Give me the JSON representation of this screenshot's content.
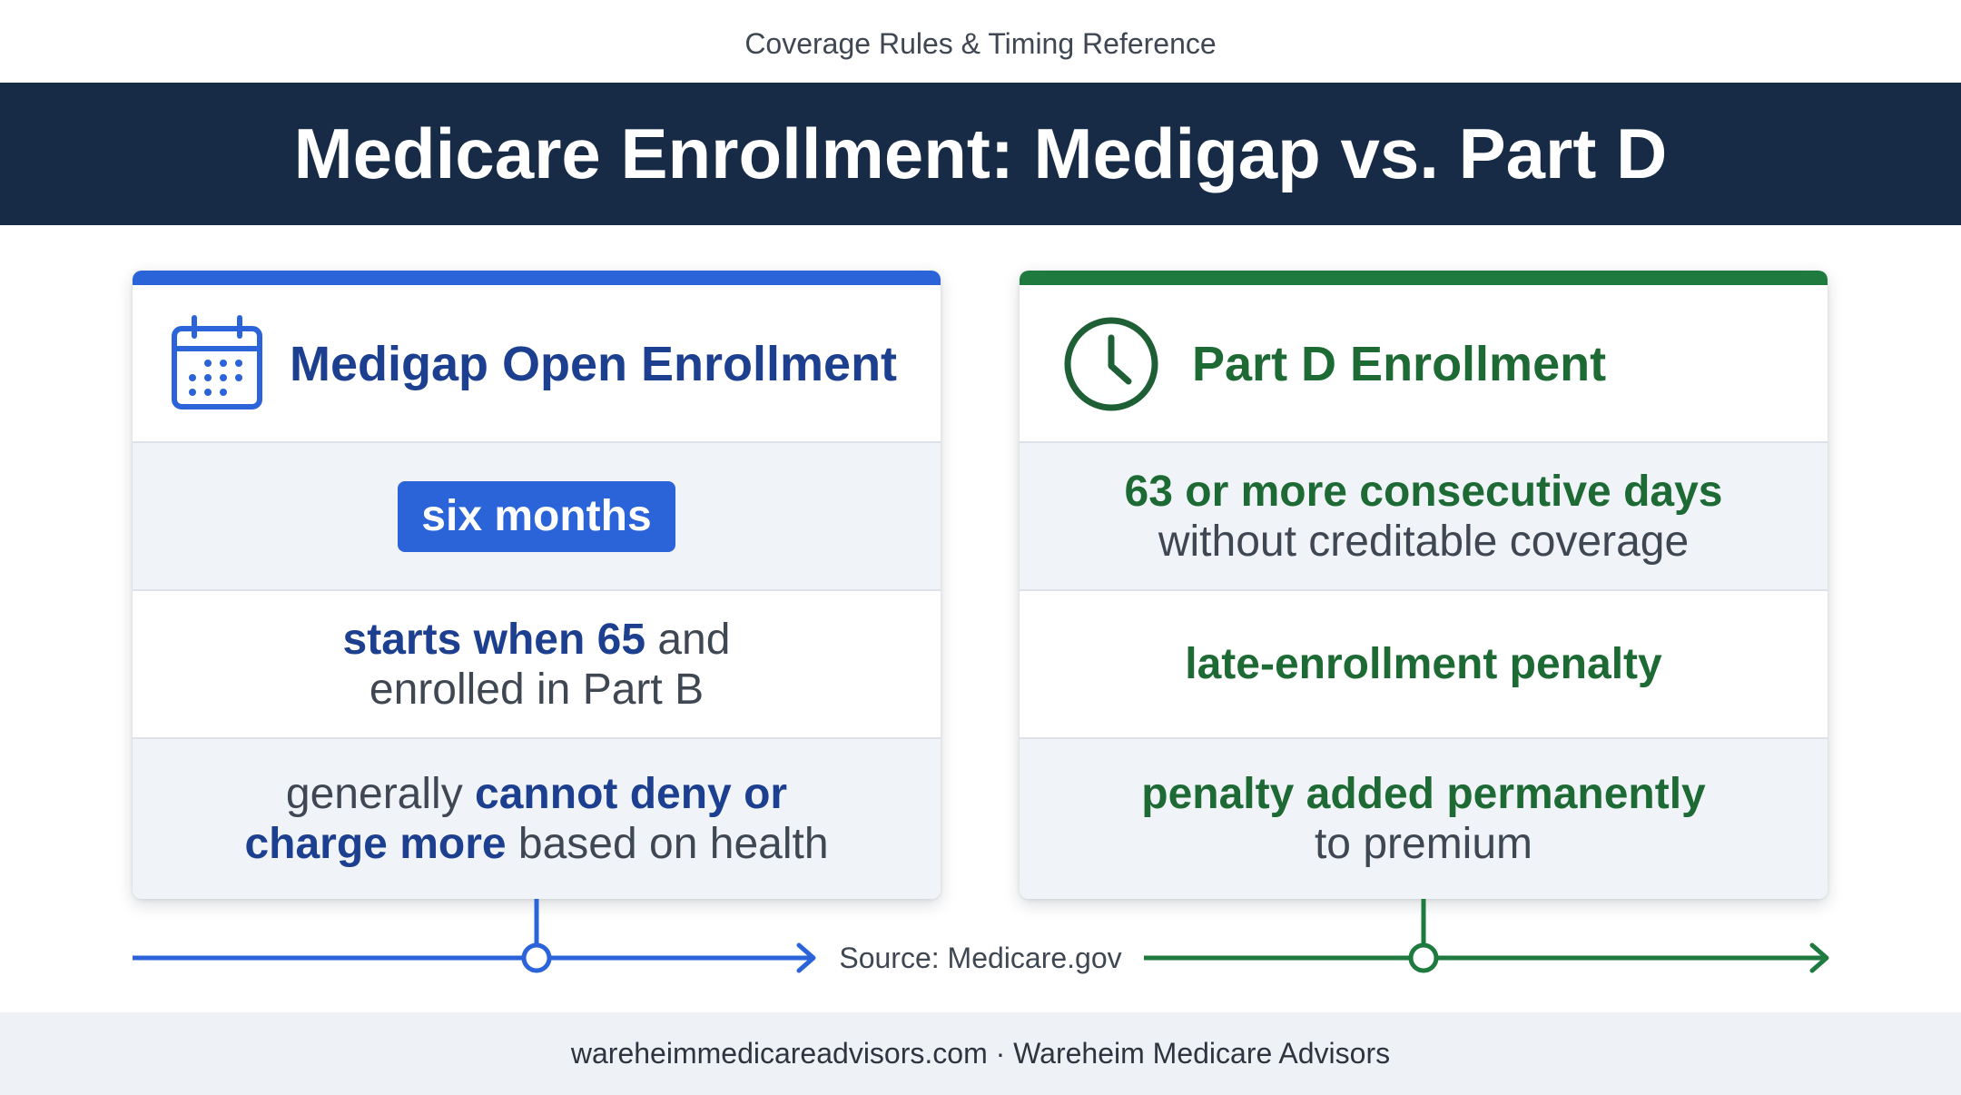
{
  "header": {
    "subtitle": "Coverage Rules & Timing Reference",
    "title": "Medicare Enrollment: Medigap vs. Part D"
  },
  "medigap": {
    "icon": "calendar-icon",
    "accent_color": "#2b63d9",
    "title": "Medigap Open Enrollment",
    "duration_badge": "six months",
    "start_bold": "starts when 65",
    "start_rest_1": " and",
    "start_rest_2": "enrolled in Part B",
    "protection_pre": "generally ",
    "protection_bold_1": "cannot deny or",
    "protection_bold_2": "charge more",
    "protection_post": " based on health"
  },
  "partd": {
    "icon": "clock-icon",
    "accent_color": "#1f7a3f",
    "title": "Part D Enrollment",
    "gap_bold": "63 or more consecutive days",
    "gap_rest": "without creditable coverage",
    "penalty": "late-enrollment penalty",
    "permanent_bold": "penalty added permanently",
    "permanent_rest": "to premium"
  },
  "source": "Source: Medicare.gov",
  "footer": "wareheimmedicareadvisors.com · Wareheim Medicare Advisors"
}
